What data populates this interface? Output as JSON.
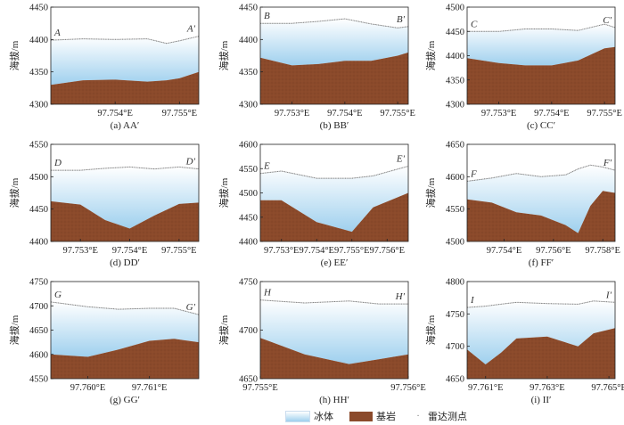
{
  "figure": {
    "ylabel": "海拔/m",
    "legend": [
      {
        "label": "冰体",
        "kind": "ice"
      },
      {
        "label": "基岩",
        "kind": "rock"
      },
      {
        "label": "雷达测点",
        "kind": "radar"
      }
    ],
    "colors": {
      "ice_top": "#ffffff",
      "ice_bottom": "#9fd0ee",
      "rock": "#8b4a2b",
      "surface": "#777777",
      "axis": "#222222"
    }
  },
  "chart_data": [
    {
      "type": "area",
      "caption": "(a) AA′",
      "start": "A",
      "end": "A′",
      "xlim": [
        97.753,
        97.7553
      ],
      "ylim": [
        4300,
        4450
      ],
      "xticks": [
        97.754,
        97.755
      ],
      "xtick_labels": [
        "97.754°E",
        "97.755°E"
      ],
      "yticks": [
        4300,
        4350,
        4400,
        4450
      ],
      "ytick_labels": [
        "4300",
        "4350",
        "4400",
        "4450"
      ],
      "x": [
        97.753,
        97.7535,
        97.754,
        97.7545,
        97.7548,
        97.755,
        97.7553
      ],
      "surface": [
        4399,
        4401,
        4400,
        4401,
        4394,
        4398,
        4405
      ],
      "bedrock": [
        4330,
        4337,
        4338,
        4335,
        4337,
        4340,
        4350
      ]
    },
    {
      "type": "area",
      "caption": "(b) BB′",
      "start": "B",
      "end": "B′",
      "xlim": [
        97.7524,
        97.7552
      ],
      "ylim": [
        4300,
        4450
      ],
      "xticks": [
        97.753,
        97.754,
        97.755
      ],
      "xtick_labels": [
        "97.753°E",
        "97.754°E",
        "97.755°E"
      ],
      "yticks": [
        4300,
        4350,
        4400,
        4450
      ],
      "ytick_labels": [
        "4300",
        "4350",
        "4400",
        "4450"
      ],
      "x": [
        97.7524,
        97.753,
        97.7535,
        97.754,
        97.7545,
        97.755,
        97.7552
      ],
      "surface": [
        4425,
        4425,
        4428,
        4432,
        4424,
        4418,
        4420
      ],
      "bedrock": [
        4372,
        4360,
        4362,
        4367,
        4367,
        4375,
        4380
      ]
    },
    {
      "type": "area",
      "caption": "(c) CC′",
      "start": "C",
      "end": "C′",
      "xlim": [
        97.7524,
        97.7552
      ],
      "ylim": [
        4300,
        4500
      ],
      "xticks": [
        97.753,
        97.754,
        97.755
      ],
      "xtick_labels": [
        "97.753°E",
        "97.754°E",
        "97.755°E"
      ],
      "yticks": [
        4300,
        4350,
        4400,
        4450,
        4500
      ],
      "ytick_labels": [
        "4300",
        "4350",
        "4400",
        "4450",
        "4500"
      ],
      "x": [
        97.7524,
        97.753,
        97.7535,
        97.754,
        97.7545,
        97.755,
        97.7552
      ],
      "surface": [
        4450,
        4450,
        4455,
        4455,
        4452,
        4465,
        4458
      ],
      "bedrock": [
        4395,
        4385,
        4380,
        4380,
        4390,
        4415,
        4418
      ]
    },
    {
      "type": "area",
      "caption": "(d) DD′",
      "start": "D",
      "end": "D′",
      "xlim": [
        97.7524,
        97.7554
      ],
      "ylim": [
        4400,
        4550
      ],
      "xticks": [
        97.753,
        97.754,
        97.755
      ],
      "xtick_labels": [
        "97.753°E",
        "97.754°E",
        "97.755°E"
      ],
      "yticks": [
        4400,
        4450,
        4500,
        4550
      ],
      "ytick_labels": [
        "4400",
        "4450",
        "4500",
        "4550"
      ],
      "x": [
        97.7524,
        97.753,
        97.7535,
        97.754,
        97.7545,
        97.755,
        97.7554
      ],
      "surface": [
        4510,
        4510,
        4513,
        4515,
        4512,
        4515,
        4512
      ],
      "bedrock": [
        4462,
        4457,
        4433,
        4420,
        4440,
        4458,
        4460
      ]
    },
    {
      "type": "area",
      "caption": "(e) EE′",
      "start": "E",
      "end": "E′",
      "xlim": [
        97.7524,
        97.7566
      ],
      "ylim": [
        4400,
        4600
      ],
      "xticks": [
        97.753,
        97.754,
        97.755,
        97.756
      ],
      "xtick_labels": [
        "97.753°E",
        "97.754°E",
        "97.755°E",
        "97.756°E"
      ],
      "yticks": [
        4400,
        4450,
        4500,
        4550,
        4600
      ],
      "ytick_labels": [
        "4400",
        "4450",
        "4500",
        "4550",
        "4600"
      ],
      "x": [
        97.7524,
        97.753,
        97.754,
        97.755,
        97.7556,
        97.7566
      ],
      "surface": [
        4540,
        4545,
        4530,
        4530,
        4535,
        4555
      ],
      "bedrock": [
        4485,
        4485,
        4440,
        4420,
        4470,
        4500
      ]
    },
    {
      "type": "area",
      "caption": "(f) FF′",
      "start": "F",
      "end": "F′",
      "xlim": [
        97.7525,
        97.7585
      ],
      "ylim": [
        4500,
        4650
      ],
      "xticks": [
        97.754,
        97.756,
        97.758
      ],
      "xtick_labels": [
        "97.754°E",
        "97.756°E",
        "97.758°E"
      ],
      "yticks": [
        4500,
        4550,
        4600,
        4650
      ],
      "ytick_labels": [
        "4500",
        "4550",
        "4600",
        "4650"
      ],
      "x": [
        97.7525,
        97.7535,
        97.7545,
        97.7555,
        97.7565,
        97.757,
        97.7575,
        97.758,
        97.7585
      ],
      "surface": [
        4593,
        4598,
        4605,
        4600,
        4603,
        4612,
        4618,
        4615,
        4610
      ],
      "bedrock": [
        4565,
        4560,
        4545,
        4540,
        4525,
        4513,
        4555,
        4578,
        4575
      ]
    },
    {
      "type": "area",
      "caption": "(g) GG′",
      "start": "G",
      "end": "G′",
      "xlim": [
        97.7594,
        97.7618
      ],
      "ylim": [
        4550,
        4750
      ],
      "xticks": [
        97.76,
        97.761
      ],
      "xtick_labels": [
        "97.760°E",
        "97.761°E"
      ],
      "yticks": [
        4550,
        4600,
        4650,
        4700,
        4750
      ],
      "ytick_labels": [
        "4550",
        "4600",
        "4650",
        "4700",
        "4750"
      ],
      "x": [
        97.7594,
        97.76,
        97.7605,
        97.761,
        97.7614,
        97.7618
      ],
      "surface": [
        4708,
        4698,
        4693,
        4695,
        4695,
        4682
      ],
      "bedrock": [
        4600,
        4595,
        4610,
        4628,
        4632,
        4625
      ]
    },
    {
      "type": "area",
      "caption": "(h) HH′",
      "start": "H",
      "end": "H′",
      "xlim": [
        97.755,
        97.756
      ],
      "ylim": [
        4650,
        4750
      ],
      "xticks": [
        97.755,
        97.756
      ],
      "xtick_labels": [
        "97.755°E",
        "97.756°E"
      ],
      "yticks": [
        4650,
        4700,
        4750
      ],
      "ytick_labels": [
        "4650",
        "4700",
        "4750"
      ],
      "x": [
        97.755,
        97.7553,
        97.7556,
        97.7558,
        97.756
      ],
      "surface": [
        4731,
        4728,
        4730,
        4727,
        4727
      ],
      "bedrock": [
        4692,
        4675,
        4665,
        4670,
        4675
      ]
    },
    {
      "type": "area",
      "caption": "(i) II′",
      "start": "I",
      "end": "I′",
      "xlim": [
        97.7604,
        97.7652
      ],
      "ylim": [
        4650,
        4800
      ],
      "xticks": [
        97.761,
        97.763,
        97.765
      ],
      "xtick_labels": [
        "97.761°E",
        "97.763°E",
        "97.765°E"
      ],
      "yticks": [
        4650,
        4700,
        4750,
        4800
      ],
      "ytick_labels": [
        "4650",
        "4700",
        "4750",
        "4800"
      ],
      "x": [
        97.7604,
        97.761,
        97.7615,
        97.762,
        97.763,
        97.764,
        97.7645,
        97.7652
      ],
      "surface": [
        4760,
        4762,
        4765,
        4768,
        4766,
        4765,
        4770,
        4768
      ],
      "bedrock": [
        4695,
        4672,
        4690,
        4712,
        4715,
        4700,
        4720,
        4728
      ]
    }
  ]
}
